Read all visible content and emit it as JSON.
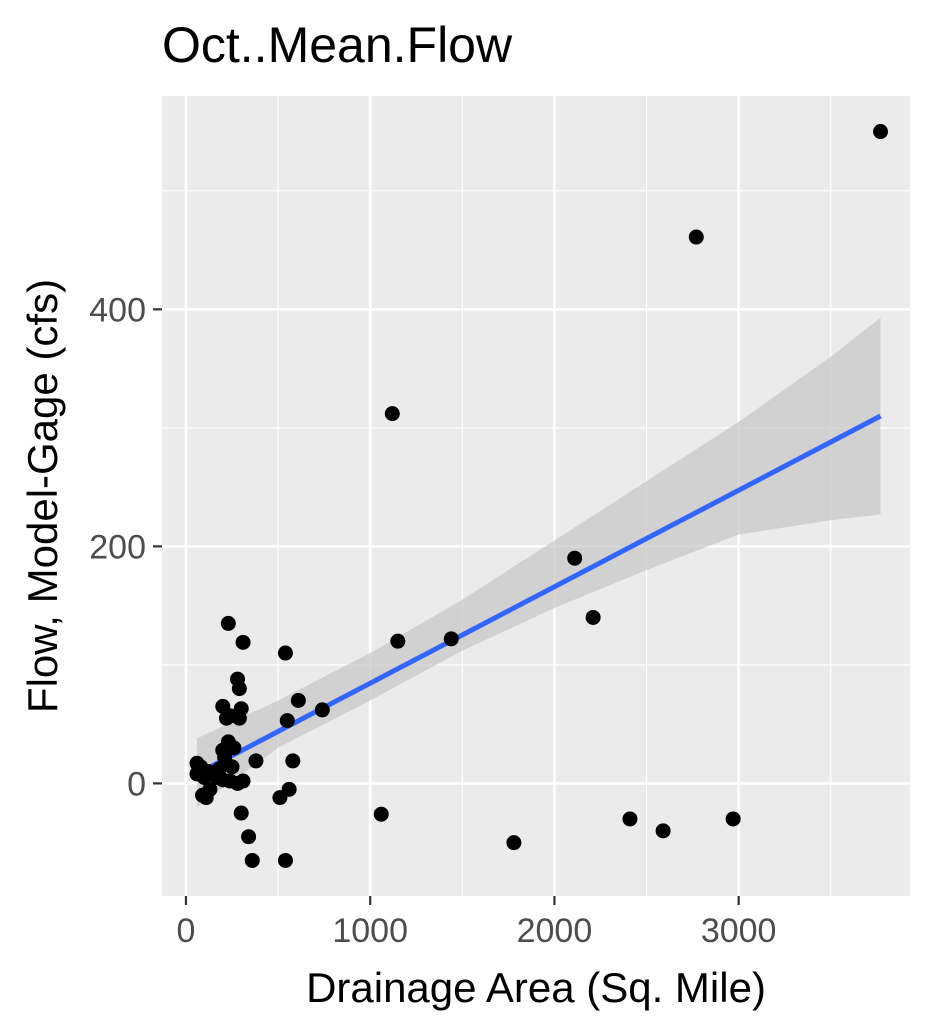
{
  "chart_data": {
    "type": "scatter",
    "title": "Oct..Mean.Flow",
    "xlabel": "Drainage Area (Sq. Mile)",
    "ylabel": "Flow, Model-Gage (cfs)",
    "xlim": [
      -130,
      3930
    ],
    "ylim": [
      -95,
      580
    ],
    "x_ticks": [
      0,
      1000,
      2000,
      3000
    ],
    "y_ticks": [
      0,
      200,
      400
    ],
    "x_tick_labels": [
      "0",
      "1000",
      "2000",
      "3000"
    ],
    "y_tick_labels": [
      "0",
      "200",
      "400"
    ],
    "grid": true,
    "colors": {
      "panel": "#ebebeb",
      "grid": "#ffffff",
      "points": "#000000",
      "fit_line": "#3366ff",
      "ribbon": "#c8c8c8"
    },
    "points": [
      [
        3770,
        550
      ],
      [
        2770,
        461
      ],
      [
        1120,
        312
      ],
      [
        2110,
        190
      ],
      [
        2210,
        140
      ],
      [
        1440,
        122
      ],
      [
        1150,
        120
      ],
      [
        310,
        119
      ],
      [
        230,
        135
      ],
      [
        540,
        110
      ],
      [
        280,
        88
      ],
      [
        290,
        80
      ],
      [
        610,
        70
      ],
      [
        200,
        65
      ],
      [
        300,
        63
      ],
      [
        740,
        62
      ],
      [
        290,
        55
      ],
      [
        550,
        53
      ],
      [
        220,
        55
      ],
      [
        240,
        57
      ],
      [
        230,
        35
      ],
      [
        260,
        30
      ],
      [
        200,
        28
      ],
      [
        210,
        22
      ],
      [
        380,
        19
      ],
      [
        580,
        19
      ],
      [
        250,
        14
      ],
      [
        60,
        17
      ],
      [
        80,
        14
      ],
      [
        120,
        10
      ],
      [
        150,
        8
      ],
      [
        180,
        12
      ],
      [
        60,
        8
      ],
      [
        100,
        5
      ],
      [
        170,
        5
      ],
      [
        200,
        3
      ],
      [
        240,
        2
      ],
      [
        310,
        2
      ],
      [
        280,
        0
      ],
      [
        130,
        -5
      ],
      [
        90,
        -10
      ],
      [
        110,
        -12
      ],
      [
        560,
        -5
      ],
      [
        510,
        -12
      ],
      [
        300,
        -25
      ],
      [
        1060,
        -26
      ],
      [
        340,
        -45
      ],
      [
        360,
        -65
      ],
      [
        540,
        -65
      ],
      [
        1780,
        -50
      ],
      [
        2410,
        -30
      ],
      [
        2590,
        -40
      ],
      [
        2970,
        -30
      ]
    ],
    "fit_line": {
      "x": [
        60,
        3770
      ],
      "y": [
        8,
        310
      ]
    },
    "confidence_band": {
      "x": [
        60,
        500,
        1000,
        1500,
        2000,
        2500,
        3000,
        3500,
        3770
      ],
      "upper": [
        38,
        70,
        110,
        155,
        205,
        255,
        305,
        360,
        393
      ],
      "lower": [
        -20,
        30,
        70,
        112,
        148,
        180,
        210,
        222,
        227
      ]
    }
  }
}
